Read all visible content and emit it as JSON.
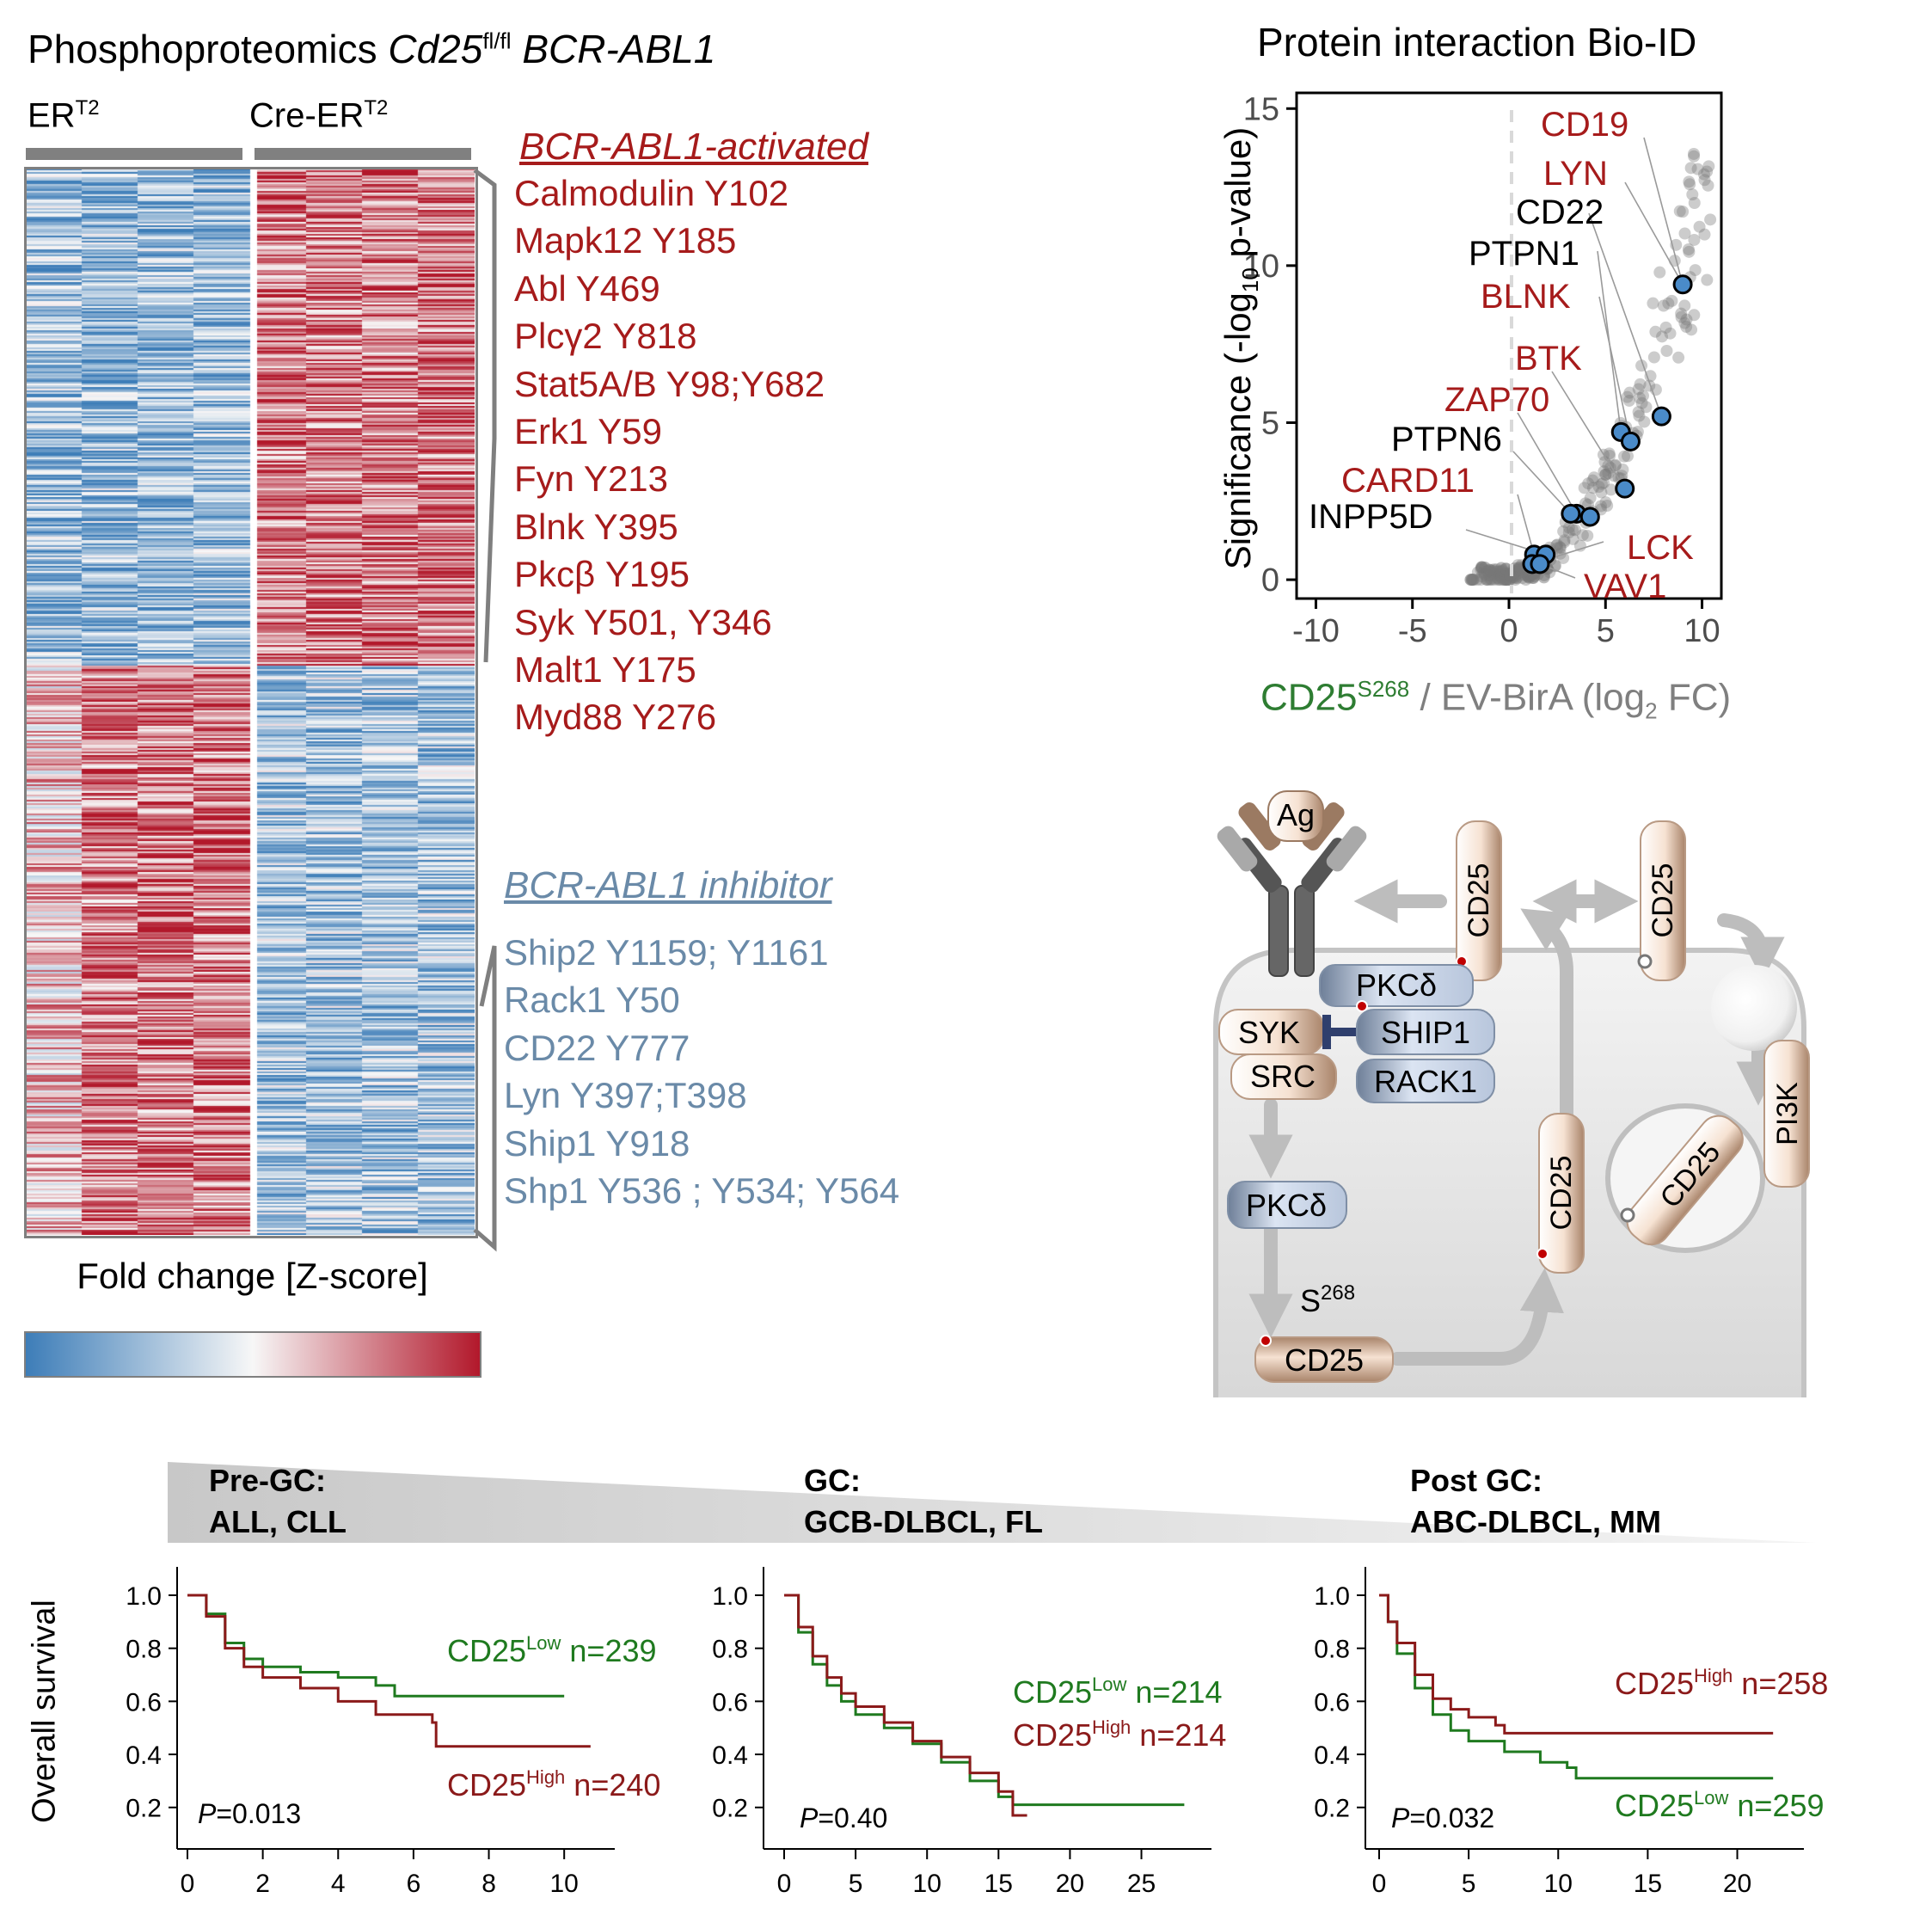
{
  "heatmap": {
    "title_pre": "Phosphoproteomics ",
    "title_gene": "Cd25",
    "title_sup": "fl/fl",
    "title_post": "BCR-ABL1",
    "group1_base": "ER",
    "group1_sup": "T2",
    "group2_base": "Cre-ER",
    "group2_sup": "T2",
    "colorbar_label": "Fold change [Z-score]",
    "colors": {
      "low": "#3d7db8",
      "mid": "#f7f7f7",
      "high": "#b2182b"
    },
    "activated_heading": "BCR-ABL1-activated",
    "activated_sites": [
      "Calmodulin Y102",
      "Mapk12 Y185",
      "Abl Y469",
      "Plcγ2 Y818",
      "Stat5A/B Y98;Y682",
      "Erk1 Y59",
      "Fyn Y213",
      "Blnk Y395",
      "Pkcβ Y195",
      "Syk Y501, Y346",
      "Malt1 Y175",
      "Myd88 Y276"
    ],
    "inhibitor_heading": "BCR-ABL1 inhibitor",
    "inhibitor_sites": [
      "Ship2 Y1159; Y1161",
      "Rack1 Y50",
      "CD22 Y777",
      "Lyn Y397;T398",
      "Ship1 Y918",
      "Shp1 Y536 ; Y534; Y564"
    ]
  },
  "bioid": {
    "title": "Protein interaction Bio-ID",
    "ylabel_pre": "Significance (-log",
    "ylabel_sub": "10",
    "ylabel_post": " p-value)",
    "xlabel_a": "CD25",
    "xlabel_a_sup": "S268",
    "xlabel_b": " / EV-BirA (log",
    "xlabel_b_sub": "2",
    "xlabel_c": " FC)",
    "xticks": [
      "-10",
      "-5",
      "0",
      "5",
      "10"
    ],
    "yticks": [
      "0",
      "5",
      "10",
      "15"
    ],
    "labels": [
      {
        "text": "CD19",
        "color": "#a61b1b"
      },
      {
        "text": "LYN",
        "color": "#a61b1b"
      },
      {
        "text": "CD22",
        "color": "#000000"
      },
      {
        "text": "PTPN1",
        "color": "#000000"
      },
      {
        "text": "BLNK",
        "color": "#a61b1b"
      },
      {
        "text": "BTK",
        "color": "#a61b1b"
      },
      {
        "text": "ZAP70",
        "color": "#a61b1b"
      },
      {
        "text": "PTPN6",
        "color": "#000000"
      },
      {
        "text": "CARD11",
        "color": "#a61b1b"
      },
      {
        "text": "INPP5D",
        "color": "#000000"
      },
      {
        "text": "LCK",
        "color": "#a61b1b"
      },
      {
        "text": "VAV1",
        "color": "#a61b1b"
      }
    ]
  },
  "chart_data": {
    "type": "scatter",
    "title": "Protein interaction Bio-ID",
    "xlabel": "CD25S268 / EV-BirA (log2 FC)",
    "ylabel": "Significance (-log10 p-value)",
    "xlim": [
      -11,
      11
    ],
    "ylim": [
      -0.6,
      15.5
    ],
    "highlighted": [
      {
        "x": 9.0,
        "y": 9.4
      },
      {
        "x": 7.9,
        "y": 5.2
      },
      {
        "x": 5.8,
        "y": 4.7
      },
      {
        "x": 6.3,
        "y": 4.4
      },
      {
        "x": 6.0,
        "y": 2.9
      },
      {
        "x": 3.5,
        "y": 2.1
      },
      {
        "x": 3.2,
        "y": 2.1
      },
      {
        "x": 4.2,
        "y": 2.0
      },
      {
        "x": 1.3,
        "y": 0.8
      },
      {
        "x": 1.9,
        "y": 0.8
      },
      {
        "x": 1.2,
        "y": 0.5
      },
      {
        "x": 1.6,
        "y": 0.5
      }
    ]
  },
  "diagram": {
    "ag": "Ag",
    "cd25": "CD25",
    "pkcd": "PKCδ",
    "syk": "SYK",
    "src": "SRC",
    "ship1": "SHIP1",
    "rack1": "RACK1",
    "pi3k": "PI3K",
    "s268_base": "S",
    "s268_sup": "268"
  },
  "km": {
    "ylabel": "Overall survival",
    "yticks": [
      "1.0",
      "0.8",
      "0.6",
      "0.4",
      "0.2"
    ],
    "headers": [
      {
        "line1": "Pre-GC:",
        "line2": "ALL, CLL"
      },
      {
        "line1": "GC:",
        "line2": "GCB-DLBCL, FL"
      },
      {
        "line1": "Post GC:",
        "line2": "ABC-DLBCL, MM"
      }
    ],
    "panels": [
      {
        "p_label": "P",
        "p_value": "=0.013",
        "xticks": [
          "0",
          "2",
          "4",
          "6",
          "8",
          "10"
        ],
        "low_label": "CD25",
        "low_sup": "Low",
        "low_n": " n=239",
        "high_label": "CD25",
        "high_sup": "High",
        "high_n": " n=240"
      },
      {
        "p_label": "P",
        "p_value": "=0.40",
        "xticks": [
          "0",
          "5",
          "10",
          "15",
          "20",
          "25"
        ],
        "low_label": "CD25",
        "low_sup": "Low",
        "low_n": " n=214",
        "high_label": "CD25",
        "high_sup": "High",
        "high_n": " n=214"
      },
      {
        "p_label": "P",
        "p_value": "=0.032",
        "xticks": [
          "0",
          "5",
          "10",
          "15",
          "20"
        ],
        "low_label": "CD25",
        "low_sup": "Low",
        "low_n": " n=259",
        "high_label": "CD25",
        "high_sup": "High",
        "high_n": " n=258"
      }
    ],
    "colors": {
      "low": "#1f7a1f",
      "high": "#8b1a1a"
    }
  }
}
